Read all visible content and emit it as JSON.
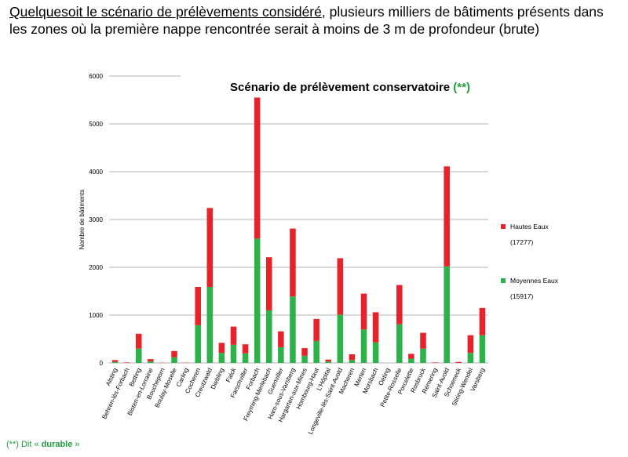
{
  "heading": {
    "underlined": "Quelquesoit le scénario de prélèvements considéré",
    "rest": ", plusieurs milliers de bâtiments présents dans les zones où la première nappe rencontrée serait à moins de 3 m de profondeur (brute)"
  },
  "footnote": {
    "prefix": "(**) Dit « ",
    "bold": "durable",
    "suffix": " »"
  },
  "chart_data": {
    "type": "bar",
    "stacked": true,
    "title": "Scénario de prélèvement conservatoire",
    "title_suffix": "(**)",
    "xlabel": "",
    "ylabel": "Nombre de bâtiments",
    "ylim": [
      0,
      6000
    ],
    "yticks": [
      0,
      1000,
      2000,
      3000,
      4000,
      5000,
      6000
    ],
    "grid": true,
    "legend_position": "right",
    "categories": [
      "Alsting",
      "Behren-lès-Forbach",
      "Betting",
      "Bisten-en-Lorraine",
      "Boucheporn",
      "Boulay-Moselle",
      "Carling",
      "Cocheren",
      "Creutzwald",
      "Diebling",
      "Falck",
      "Farschviller",
      "Forbach",
      "Freyming-Merlebach",
      "Guenviller",
      "Ham-sous-Varsberg",
      "Hargarten-aux-Mines",
      "Hombourg-Haut",
      "L'Hôpital",
      "Longeville-lès-Saint-Avold",
      "Macheren",
      "Merten",
      "Morsbach",
      "Oeting",
      "Petite-Rosselle",
      "Porcelette",
      "Rosbruck",
      "Rémering",
      "Saint-Avold",
      "Schoeneck",
      "Stiring-Wendel",
      "Varsberg"
    ],
    "series": [
      {
        "name": "Moyennes Eaux",
        "total_label": "(15917)",
        "color": "#2bb34a",
        "values": [
          20,
          0,
          300,
          30,
          0,
          120,
          0,
          790,
          1590,
          210,
          380,
          200,
          2600,
          1100,
          330,
          1390,
          150,
          460,
          30,
          1010,
          60,
          700,
          430,
          0,
          810,
          90,
          300,
          0,
          2020,
          0,
          210,
          580
        ]
      },
      {
        "name": "Hautes Eaux",
        "total_label": "(17277)",
        "color": "#e8222a",
        "values": [
          40,
          10,
          310,
          50,
          5,
          130,
          5,
          800,
          1650,
          210,
          380,
          190,
          2950,
          1110,
          330,
          1420,
          160,
          460,
          40,
          1180,
          120,
          750,
          630,
          0,
          820,
          100,
          330,
          10,
          2090,
          20,
          370,
          570
        ]
      }
    ]
  }
}
